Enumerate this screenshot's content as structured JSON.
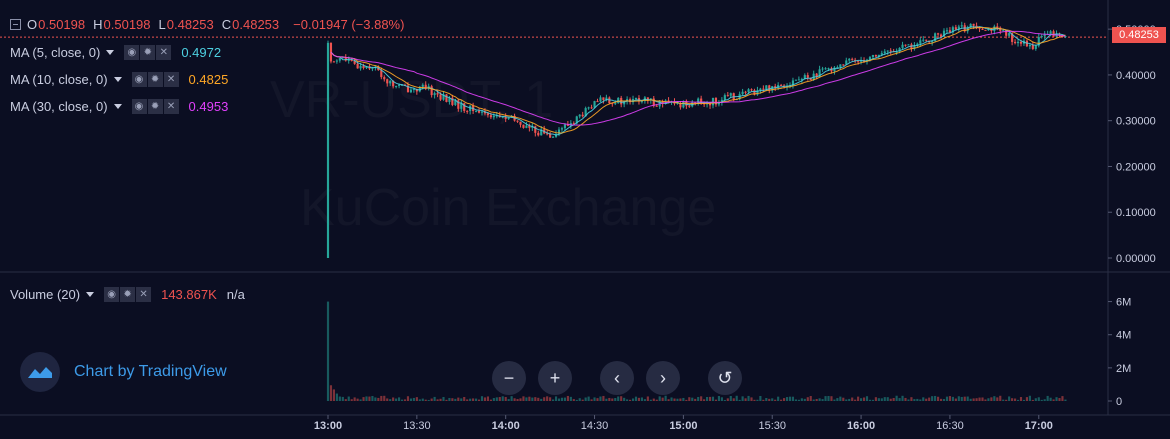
{
  "watermark": {
    "symbol": "VR-USDT, 1",
    "exchange": "KuCoin Exchange"
  },
  "ohlc": {
    "o_label": "O",
    "o": "0.50198",
    "h_label": "H",
    "h": "0.50198",
    "l_label": "L",
    "l": "0.48253",
    "c_label": "C",
    "c": "0.48253",
    "change": "−0.01947 (−3.88%)"
  },
  "indicators": [
    {
      "label": "MA (5, close, 0)",
      "value": "0.4972",
      "color": "#4dd0e1"
    },
    {
      "label": "MA (10, close, 0)",
      "value": "0.4825",
      "color": "#ffa726"
    },
    {
      "label": "MA (30, close, 0)",
      "value": "0.4953",
      "color": "#e040fb"
    }
  ],
  "volume": {
    "label": "Volume (20)",
    "value": "143.867K",
    "extra": "n/a"
  },
  "price_axis": {
    "ticks": [
      "0.50000",
      "0.40000",
      "0.30000",
      "0.20000",
      "0.10000",
      "0.00000"
    ],
    "current": "0.48253"
  },
  "volume_axis": {
    "ticks": [
      "6M",
      "4M",
      "2M",
      "0"
    ]
  },
  "time_axis": {
    "ticks": [
      "13:00",
      "13:30",
      "14:00",
      "14:30",
      "15:00",
      "15:30",
      "16:00",
      "16:30",
      "17:00"
    ]
  },
  "branding": {
    "text": "Chart by TradingView"
  },
  "controls": {
    "zoom_out": "−",
    "zoom_in": "+",
    "scroll_left": "‹",
    "scroll_right": "›",
    "reset": "↺"
  },
  "colors": {
    "up": "#26a69a",
    "down": "#ef5350",
    "background": "#0b0e22",
    "ma5": "#4dd0e1",
    "ma10": "#ffa726",
    "ma30": "#e040fb"
  },
  "chart_data": {
    "type": "candlestick",
    "price_ylim": [
      0,
      0.52
    ],
    "volume_ylim": [
      0,
      7000000
    ],
    "x_range": [
      "13:00",
      "17:00"
    ],
    "price_path": [
      [
        0,
        0.0
      ],
      [
        0.1,
        0.47
      ],
      [
        2,
        0.43
      ],
      [
        5,
        0.44
      ],
      [
        10,
        0.42
      ],
      [
        16,
        0.42
      ],
      [
        22,
        0.38
      ],
      [
        28,
        0.37
      ],
      [
        34,
        0.37
      ],
      [
        40,
        0.35
      ],
      [
        46,
        0.33
      ],
      [
        52,
        0.32
      ],
      [
        58,
        0.31
      ],
      [
        64,
        0.3
      ],
      [
        70,
        0.28
      ],
      [
        76,
        0.27
      ],
      [
        82,
        0.29
      ],
      [
        88,
        0.32
      ],
      [
        94,
        0.35
      ],
      [
        100,
        0.34
      ],
      [
        106,
        0.345
      ],
      [
        112,
        0.34
      ],
      [
        118,
        0.335
      ],
      [
        124,
        0.34
      ],
      [
        130,
        0.34
      ],
      [
        136,
        0.35
      ],
      [
        142,
        0.36
      ],
      [
        148,
        0.37
      ],
      [
        154,
        0.38
      ],
      [
        160,
        0.39
      ],
      [
        166,
        0.4
      ],
      [
        172,
        0.42
      ],
      [
        178,
        0.43
      ],
      [
        184,
        0.44
      ],
      [
        190,
        0.45
      ],
      [
        196,
        0.46
      ],
      [
        202,
        0.47
      ],
      [
        208,
        0.49
      ],
      [
        214,
        0.5
      ],
      [
        220,
        0.51
      ],
      [
        226,
        0.5
      ],
      [
        232,
        0.48
      ],
      [
        238,
        0.46
      ],
      [
        244,
        0.49
      ],
      [
        250,
        0.4825
      ]
    ],
    "volume_spike": {
      "time": "13:00",
      "value": 6000000
    }
  }
}
